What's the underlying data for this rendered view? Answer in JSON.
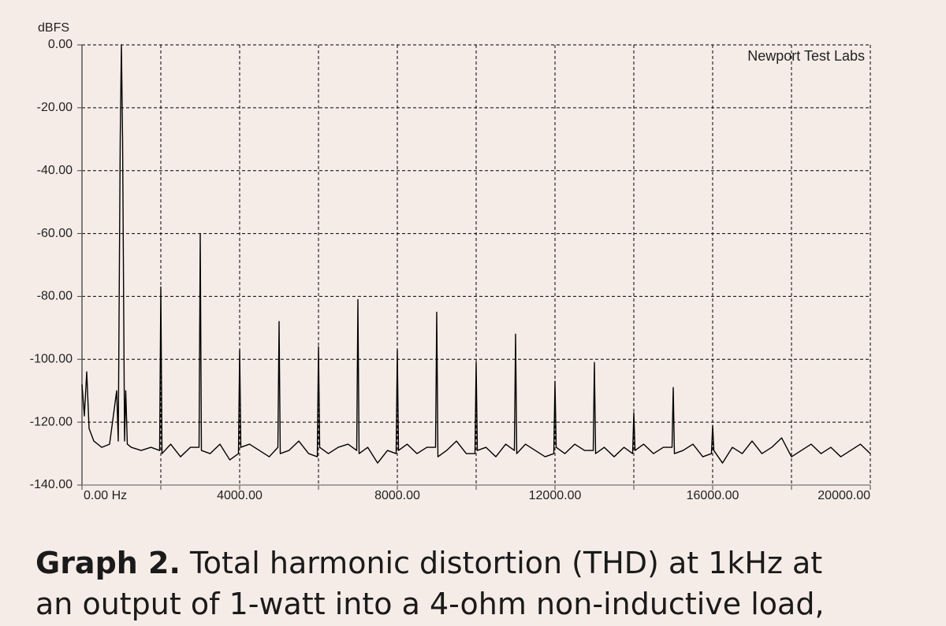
{
  "chart_data": {
    "type": "line",
    "y_label": "dBFS",
    "annotation": "Newport Test Labs",
    "color": "#000000",
    "grid": true,
    "xlim": [
      0,
      20000
    ],
    "ylim": [
      -140,
      0
    ],
    "xticks": [
      {
        "value": 0,
        "label": "0.00 Hz"
      },
      {
        "value": 4000,
        "label": "4000.00"
      },
      {
        "value": 8000,
        "label": "8000.00"
      },
      {
        "value": 12000,
        "label": "12000.00"
      },
      {
        "value": 16000,
        "label": "16000.00"
      },
      {
        "value": 20000,
        "label": "20000.00"
      }
    ],
    "xminorticks": [
      2000,
      6000,
      10000,
      14000,
      18000
    ],
    "yticks": [
      {
        "value": 0,
        "label": "0.00"
      },
      {
        "value": -20,
        "label": "-20.00"
      },
      {
        "value": -40,
        "label": "-40.00"
      },
      {
        "value": -60,
        "label": "-60.00"
      },
      {
        "value": -80,
        "label": "-80.00"
      },
      {
        "value": -100,
        "label": "-100.00"
      },
      {
        "value": -120,
        "label": "-120.00"
      },
      {
        "value": -140,
        "label": "-140.00"
      }
    ],
    "x": [
      0,
      60,
      120,
      180,
      300,
      500,
      700,
      880,
      920,
      970,
      1000,
      1030,
      1080,
      1110,
      1150,
      1250,
      1500,
      1750,
      1970,
      2000,
      2030,
      2250,
      2500,
      2750,
      2970,
      3000,
      3030,
      3250,
      3500,
      3750,
      3970,
      4000,
      4030,
      4250,
      4500,
      4750,
      4970,
      5000,
      5030,
      5250,
      5500,
      5750,
      5970,
      6000,
      6030,
      6250,
      6500,
      6750,
      6970,
      7000,
      7030,
      7250,
      7500,
      7750,
      7970,
      8000,
      8030,
      8250,
      8500,
      8750,
      8970,
      9000,
      9030,
      9250,
      9500,
      9750,
      9970,
      10000,
      10030,
      10250,
      10500,
      10750,
      10970,
      11000,
      11030,
      11250,
      11500,
      11750,
      11970,
      12000,
      12030,
      12250,
      12500,
      12750,
      12970,
      13000,
      13030,
      13250,
      13500,
      13750,
      13970,
      14000,
      14030,
      14250,
      14500,
      14750,
      14970,
      15000,
      15030,
      15250,
      15500,
      15750,
      15970,
      16000,
      16030,
      16250,
      16500,
      16750,
      17000,
      17250,
      17500,
      17750,
      18000,
      18250,
      18500,
      18750,
      19000,
      19250,
      19500,
      19750,
      20000
    ],
    "values": [
      -108,
      -118,
      -104,
      -122,
      -126,
      -128,
      -127,
      -110,
      -126,
      -30,
      0,
      -30,
      -126,
      -110,
      -127,
      -128,
      -129,
      -128,
      -129,
      -77,
      -130,
      -127,
      -131,
      -128,
      -128,
      -60,
      -129,
      -130,
      -127,
      -132,
      -130,
      -97,
      -128,
      -127,
      -129,
      -131,
      -128,
      -88,
      -130,
      -129,
      -126,
      -130,
      -131,
      -96,
      -128,
      -130,
      -128,
      -127,
      -129,
      -81,
      -130,
      -128,
      -133,
      -129,
      -130,
      -97,
      -129,
      -127,
      -130,
      -128,
      -128,
      -85,
      -131,
      -129,
      -126,
      -130,
      -130,
      -101,
      -129,
      -128,
      -131,
      -127,
      -129,
      -92,
      -130,
      -127,
      -129,
      -131,
      -130,
      -107,
      -128,
      -130,
      -127,
      -129,
      -129,
      -101,
      -130,
      -128,
      -131,
      -128,
      -130,
      -117,
      -129,
      -127,
      -130,
      -128,
      -128,
      -109,
      -130,
      -129,
      -127,
      -131,
      -130,
      -121,
      -129,
      -133,
      -128,
      -130,
      -126,
      -130,
      -128,
      -125,
      -131,
      -129,
      -127,
      -130,
      -128,
      -131,
      -129,
      -127,
      -130
    ]
  },
  "caption": {
    "label": "Graph 2.",
    "lines": [
      "Total harmonic distortion (THD) at 1kHz at",
      "an output of 1-watt into a 4-ohm non-inductive load,"
    ]
  }
}
